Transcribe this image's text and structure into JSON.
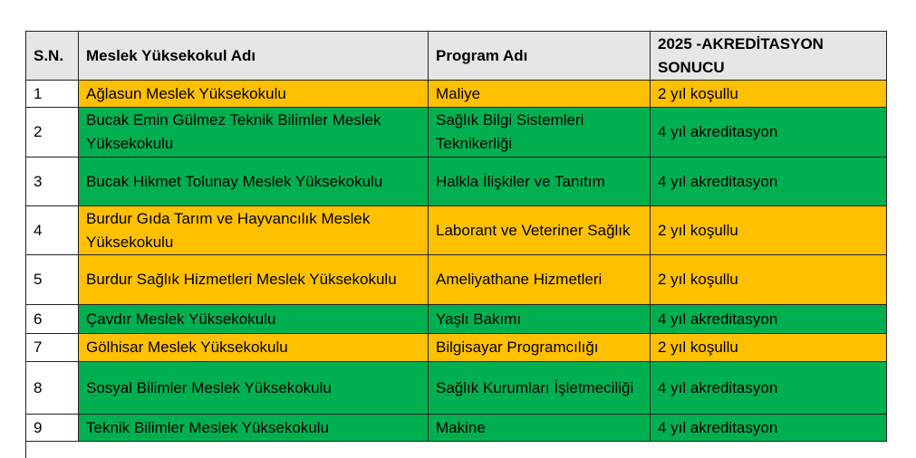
{
  "colors": {
    "conditional": "#FFC000",
    "accredited": "#00B050",
    "header": "#E7E6E6"
  },
  "headers": [
    "S.N.",
    "Meslek Yüksekokul Adı",
    "Program Adı",
    "2025 -AKREDİTASYON SONUCU"
  ],
  "rows": [
    {
      "sn": "1",
      "school": "Ağlasun Meslek Yüksekokulu",
      "program": "Maliye",
      "result": "2 yıl koşullu",
      "status": "conditional"
    },
    {
      "sn": "2",
      "school": "Bucak Emin Gülmez Teknik Bilimler Meslek Yüksekokulu",
      "program": "Sağlık Bilgi Sistemleri Teknikerliği",
      "result": "4 yıl akreditasyon",
      "status": "accredited"
    },
    {
      "sn": "3",
      "school": "Bucak Hikmet Tolunay Meslek Yüksekokulu",
      "program": "Halkla İlişkiler ve Tanıtım",
      "result": "4 yıl akreditasyon",
      "status": "accredited"
    },
    {
      "sn": "4",
      "school": "Burdur Gıda Tarım ve Hayvancılık Meslek Yüksekokulu",
      "program": "Laborant ve Veteriner Sağlık",
      "result": "2 yıl koşullu",
      "status": "conditional"
    },
    {
      "sn": "5",
      "school": "Burdur Sağlık Hizmetleri Meslek Yüksekokulu",
      "program": "Ameliyathane Hizmetleri",
      "result": "2 yıl koşullu",
      "status": "conditional"
    },
    {
      "sn": "6",
      "school": "Çavdır Meslek Yüksekokulu",
      "program": "Yaşlı Bakımı",
      "result": "4 yıl akreditasyon",
      "status": "accredited"
    },
    {
      "sn": "7",
      "school": "Gölhisar Meslek Yüksekokulu",
      "program": "Bilgisayar Programcılığı",
      "result": "2 yıl koşullu",
      "status": "conditional"
    },
    {
      "sn": "8",
      "school": "Sosyal Bilimler Meslek Yüksekokulu",
      "program": "Sağlık Kurumları İşletmeciliği",
      "result": "4 yıl akreditasyon",
      "status": "accredited"
    },
    {
      "sn": "9",
      "school": "Teknik Bilimler Meslek Yüksekokulu",
      "program": "Makine",
      "result": "4 yıl akreditasyon",
      "status": "accredited"
    }
  ]
}
